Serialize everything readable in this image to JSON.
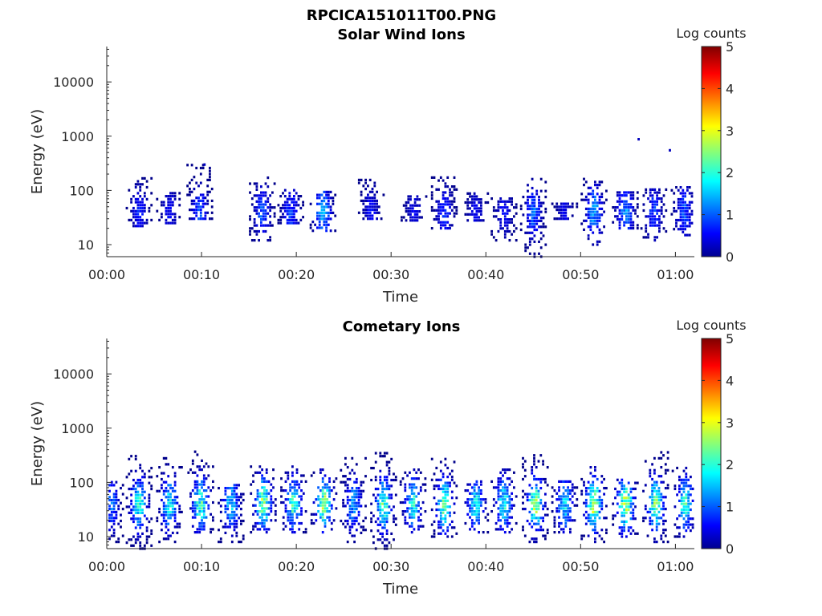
{
  "figure_title": "RPCICA151011T00.PNG",
  "chart_data": [
    {
      "type": "heatmap",
      "title": "Solar Wind Ions",
      "xlabel": "Time",
      "ylabel": "Energy (eV)",
      "y_scale": "log",
      "ylim": [
        6,
        45000
      ],
      "xlim_minutes": [
        0,
        62
      ],
      "x_ticks": [
        {
          "minute": 0,
          "label": "00:00"
        },
        {
          "minute": 10,
          "label": "00:10"
        },
        {
          "minute": 20,
          "label": "00:20"
        },
        {
          "minute": 30,
          "label": "00:30"
        },
        {
          "minute": 40,
          "label": "00:40"
        },
        {
          "minute": 50,
          "label": "00:50"
        },
        {
          "minute": 60,
          "label": "01:00"
        }
      ],
      "y_ticks": [
        {
          "value": 10,
          "label": "10"
        },
        {
          "value": 100,
          "label": "100"
        },
        {
          "value": 1000,
          "label": "1000"
        },
        {
          "value": 10000,
          "label": "10000"
        }
      ],
      "colorbar": {
        "title": "Log counts",
        "range": [
          0,
          5
        ],
        "ticks": [
          "0",
          "1",
          "2",
          "3",
          "4",
          "5"
        ],
        "colormap": "jet"
      },
      "grid": false,
      "bursts": [
        {
          "t": 3.3,
          "emin": 22,
          "emax": 180,
          "peak": 0.7
        },
        {
          "t": 6.5,
          "emin": 25,
          "emax": 95,
          "peak": 0.6
        },
        {
          "t": 9.7,
          "emin": 30,
          "emax": 300,
          "peak": 0.9
        },
        {
          "t": 16.3,
          "emin": 12,
          "emax": 180,
          "peak": 1.0
        },
        {
          "t": 19.3,
          "emin": 25,
          "emax": 110,
          "peak": 0.9
        },
        {
          "t": 22.7,
          "emin": 18,
          "emax": 100,
          "peak": 1.5
        },
        {
          "t": 27.8,
          "emin": 30,
          "emax": 160,
          "peak": 0.6
        },
        {
          "t": 32.3,
          "emin": 28,
          "emax": 80,
          "peak": 0.5
        },
        {
          "t": 35.5,
          "emin": 20,
          "emax": 180,
          "peak": 0.8
        },
        {
          "t": 38.8,
          "emin": 28,
          "emax": 90,
          "peak": 0.5
        },
        {
          "t": 41.8,
          "emin": 12,
          "emax": 80,
          "peak": 0.6
        },
        {
          "t": 44.9,
          "emin": 6,
          "emax": 180,
          "peak": 1.1
        },
        {
          "t": 48.2,
          "emin": 30,
          "emax": 60,
          "peak": 0.5
        },
        {
          "t": 51.3,
          "emin": 10,
          "emax": 180,
          "peak": 1.4
        },
        {
          "t": 54.6,
          "emin": 20,
          "emax": 100,
          "peak": 1.3
        },
        {
          "t": 57.6,
          "emin": 12,
          "emax": 110,
          "peak": 0.9
        },
        {
          "t": 60.8,
          "emin": 15,
          "emax": 120,
          "peak": 1.0
        }
      ],
      "points": [
        {
          "t": 56.0,
          "e": 880,
          "v": 0.3
        },
        {
          "t": 59.3,
          "e": 550,
          "v": 0.3
        },
        {
          "t": 10.2,
          "e": 300,
          "v": 0.3
        }
      ]
    },
    {
      "type": "heatmap",
      "title": "Cometary Ions",
      "xlabel": "Time",
      "ylabel": "Energy (eV)",
      "y_scale": "log",
      "ylim": [
        6,
        45000
      ],
      "xlim_minutes": [
        0,
        62
      ],
      "x_ticks": [
        {
          "minute": 0,
          "label": "00:00"
        },
        {
          "minute": 10,
          "label": "00:10"
        },
        {
          "minute": 20,
          "label": "00:20"
        },
        {
          "minute": 30,
          "label": "00:30"
        },
        {
          "minute": 40,
          "label": "00:40"
        },
        {
          "minute": 50,
          "label": "00:50"
        },
        {
          "minute": 60,
          "label": "01:00"
        }
      ],
      "y_ticks": [
        {
          "value": 10,
          "label": "10"
        },
        {
          "value": 100,
          "label": "100"
        },
        {
          "value": 1000,
          "label": "1000"
        },
        {
          "value": 10000,
          "label": "10000"
        }
      ],
      "colorbar": {
        "title": "Log counts",
        "range": [
          0,
          5
        ],
        "ticks": [
          "0",
          "1",
          "2",
          "3",
          "4",
          "5"
        ],
        "colormap": "jet"
      },
      "grid": false,
      "bursts": [
        {
          "t": 0.3,
          "emin": 8,
          "emax": 110,
          "peak": 1.2
        },
        {
          "t": 3.3,
          "emin": 6,
          "emax": 380,
          "peak": 2.0
        },
        {
          "t": 6.5,
          "emin": 8,
          "emax": 280,
          "peak": 1.9
        },
        {
          "t": 9.8,
          "emin": 12,
          "emax": 400,
          "peak": 2.2
        },
        {
          "t": 13.0,
          "emin": 8,
          "emax": 90,
          "peak": 1.6
        },
        {
          "t": 16.4,
          "emin": 12,
          "emax": 200,
          "peak": 2.5
        },
        {
          "t": 19.6,
          "emin": 12,
          "emax": 200,
          "peak": 2.1
        },
        {
          "t": 22.8,
          "emin": 12,
          "emax": 180,
          "peak": 2.5
        },
        {
          "t": 25.9,
          "emin": 8,
          "emax": 330,
          "peak": 1.4
        },
        {
          "t": 29.1,
          "emin": 6,
          "emax": 380,
          "peak": 2.2
        },
        {
          "t": 32.2,
          "emin": 12,
          "emax": 180,
          "peak": 1.9
        },
        {
          "t": 35.5,
          "emin": 10,
          "emax": 300,
          "peak": 2.3
        },
        {
          "t": 38.8,
          "emin": 12,
          "emax": 110,
          "peak": 1.8
        },
        {
          "t": 41.8,
          "emin": 12,
          "emax": 180,
          "peak": 1.9
        },
        {
          "t": 45.1,
          "emin": 8,
          "emax": 380,
          "peak": 2.5
        },
        {
          "t": 48.2,
          "emin": 12,
          "emax": 110,
          "peak": 1.7
        },
        {
          "t": 51.3,
          "emin": 8,
          "emax": 200,
          "peak": 2.8
        },
        {
          "t": 54.6,
          "emin": 10,
          "emax": 120,
          "peak": 2.7
        },
        {
          "t": 57.8,
          "emin": 8,
          "emax": 380,
          "peak": 2.4
        },
        {
          "t": 60.9,
          "emin": 10,
          "emax": 200,
          "peak": 2.0
        }
      ],
      "points": []
    }
  ]
}
